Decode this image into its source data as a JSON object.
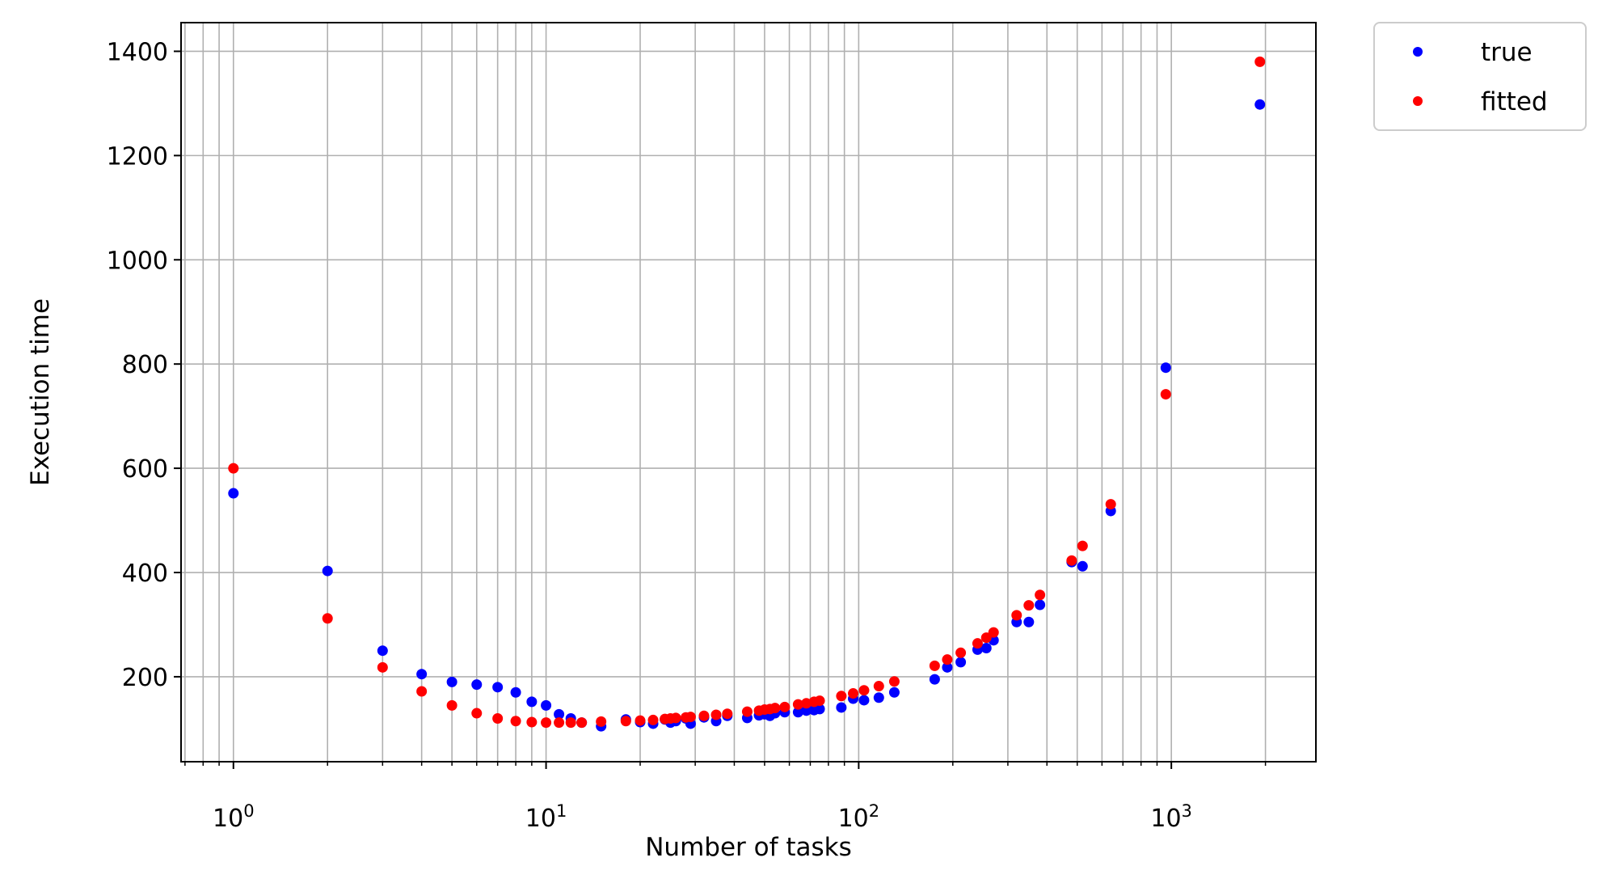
{
  "chart_data": {
    "type": "scatter",
    "xscale": "log",
    "xlabel": "Number of tasks",
    "ylabel": "Execution time",
    "xlim": [
      0.68,
      2900
    ],
    "ylim": [
      37,
      1455
    ],
    "yticks": [
      200,
      400,
      600,
      800,
      1000,
      1200,
      1400
    ],
    "xticks_major": [
      {
        "value": 1,
        "base": "10",
        "exp": "0"
      },
      {
        "value": 10,
        "base": "10",
        "exp": "1"
      },
      {
        "value": 100,
        "base": "10",
        "exp": "2"
      },
      {
        "value": 1000,
        "base": "10",
        "exp": "3"
      }
    ],
    "grid": "major+minor on x, major on y",
    "legend_position": "outside top-right",
    "series": [
      {
        "name": "true",
        "color": "#0000ff",
        "points": [
          [
            1,
            552
          ],
          [
            2,
            403
          ],
          [
            3,
            250
          ],
          [
            4,
            205
          ],
          [
            5,
            190
          ],
          [
            6,
            185
          ],
          [
            7,
            180
          ],
          [
            8,
            170
          ],
          [
            9,
            152
          ],
          [
            10,
            145
          ],
          [
            11,
            128
          ],
          [
            12,
            120
          ],
          [
            13,
            112
          ],
          [
            15,
            105
          ],
          [
            18,
            118
          ],
          [
            20,
            113
          ],
          [
            22,
            110
          ],
          [
            24,
            118
          ],
          [
            25,
            112
          ],
          [
            26,
            115
          ],
          [
            28,
            120
          ],
          [
            29,
            110
          ],
          [
            32,
            122
          ],
          [
            35,
            115
          ],
          [
            38,
            125
          ],
          [
            44,
            121
          ],
          [
            48,
            126
          ],
          [
            50,
            128
          ],
          [
            52,
            125
          ],
          [
            54,
            130
          ],
          [
            58,
            132
          ],
          [
            64,
            132
          ],
          [
            68,
            135
          ],
          [
            72,
            136
          ],
          [
            75,
            138
          ],
          [
            88,
            141
          ],
          [
            96,
            158
          ],
          [
            104,
            155
          ],
          [
            116,
            160
          ],
          [
            130,
            170
          ],
          [
            175,
            195
          ],
          [
            192,
            218
          ],
          [
            212,
            228
          ],
          [
            240,
            252
          ],
          [
            256,
            255
          ],
          [
            270,
            270
          ],
          [
            320,
            305
          ],
          [
            350,
            305
          ],
          [
            380,
            338
          ],
          [
            480,
            420
          ],
          [
            520,
            412
          ],
          [
            640,
            518
          ],
          [
            960,
            793
          ],
          [
            1920,
            1298
          ]
        ]
      },
      {
        "name": "fitted",
        "color": "#ff0000",
        "points": [
          [
            1,
            600
          ],
          [
            2,
            312
          ],
          [
            3,
            218
          ],
          [
            4,
            172
          ],
          [
            5,
            145
          ],
          [
            6,
            130
          ],
          [
            7,
            120
          ],
          [
            8,
            115
          ],
          [
            9,
            113
          ],
          [
            10,
            112
          ],
          [
            11,
            112
          ],
          [
            12,
            112
          ],
          [
            13,
            112
          ],
          [
            15,
            114
          ],
          [
            18,
            115
          ],
          [
            20,
            116
          ],
          [
            22,
            117
          ],
          [
            24,
            119
          ],
          [
            25,
            120
          ],
          [
            26,
            121
          ],
          [
            28,
            122
          ],
          [
            29,
            123
          ],
          [
            32,
            125
          ],
          [
            35,
            127
          ],
          [
            38,
            129
          ],
          [
            44,
            133
          ],
          [
            48,
            135
          ],
          [
            50,
            137
          ],
          [
            52,
            138
          ],
          [
            54,
            140
          ],
          [
            58,
            142
          ],
          [
            64,
            147
          ],
          [
            68,
            149
          ],
          [
            72,
            152
          ],
          [
            75,
            154
          ],
          [
            88,
            163
          ],
          [
            96,
            168
          ],
          [
            104,
            174
          ],
          [
            116,
            182
          ],
          [
            130,
            191
          ],
          [
            175,
            221
          ],
          [
            192,
            233
          ],
          [
            212,
            246
          ],
          [
            240,
            264
          ],
          [
            256,
            275
          ],
          [
            270,
            285
          ],
          [
            320,
            318
          ],
          [
            350,
            337
          ],
          [
            380,
            357
          ],
          [
            480,
            423
          ],
          [
            520,
            451
          ],
          [
            640,
            531
          ],
          [
            960,
            742
          ],
          [
            1920,
            1380
          ]
        ]
      }
    ]
  }
}
